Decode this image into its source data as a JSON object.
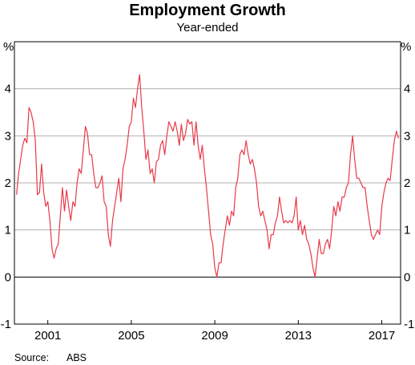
{
  "chart_data": {
    "type": "line",
    "title": "Employment Growth",
    "subtitle": "Year-ended",
    "y_unit_left": "%",
    "y_unit_right": "%",
    "ylim": [
      -1,
      5
    ],
    "yticks": [
      -1,
      0,
      1,
      2,
      3,
      4
    ],
    "xlim": [
      1999.4,
      2017.9
    ],
    "xticks": [
      2001,
      2005,
      2009,
      2013,
      2017
    ],
    "grid": "horizontal",
    "source_label": "Source:",
    "source_value": "ABS",
    "series": [
      {
        "color": "#e8394a",
        "points": [
          [
            1999.5,
            1.75
          ],
          [
            1999.6,
            2.2
          ],
          [
            1999.7,
            2.5
          ],
          [
            1999.8,
            2.8
          ],
          [
            1999.9,
            2.95
          ],
          [
            2000.0,
            2.85
          ],
          [
            2000.1,
            3.6
          ],
          [
            2000.2,
            3.5
          ],
          [
            2000.3,
            3.3
          ],
          [
            2000.4,
            2.9
          ],
          [
            2000.5,
            1.75
          ],
          [
            2000.6,
            1.8
          ],
          [
            2000.7,
            2.4
          ],
          [
            2000.8,
            1.8
          ],
          [
            2000.9,
            1.5
          ],
          [
            2001.0,
            1.6
          ],
          [
            2001.1,
            1.2
          ],
          [
            2001.2,
            0.6
          ],
          [
            2001.3,
            0.4
          ],
          [
            2001.4,
            0.6
          ],
          [
            2001.5,
            0.7
          ],
          [
            2001.6,
            1.3
          ],
          [
            2001.7,
            1.9
          ],
          [
            2001.8,
            1.4
          ],
          [
            2001.9,
            1.85
          ],
          [
            2002.0,
            1.5
          ],
          [
            2002.1,
            1.2
          ],
          [
            2002.2,
            1.6
          ],
          [
            2002.3,
            1.5
          ],
          [
            2002.4,
            2.0
          ],
          [
            2002.5,
            2.3
          ],
          [
            2002.6,
            2.2
          ],
          [
            2002.7,
            2.7
          ],
          [
            2002.8,
            3.2
          ],
          [
            2002.9,
            3.05
          ],
          [
            2003.0,
            2.6
          ],
          [
            2003.1,
            2.6
          ],
          [
            2003.2,
            2.2
          ],
          [
            2003.3,
            1.9
          ],
          [
            2003.4,
            1.9
          ],
          [
            2003.5,
            2.0
          ],
          [
            2003.6,
            2.15
          ],
          [
            2003.7,
            1.6
          ],
          [
            2003.8,
            1.5
          ],
          [
            2003.9,
            0.9
          ],
          [
            2004.0,
            0.65
          ],
          [
            2004.1,
            1.2
          ],
          [
            2004.2,
            1.5
          ],
          [
            2004.3,
            1.8
          ],
          [
            2004.4,
            2.1
          ],
          [
            2004.5,
            1.6
          ],
          [
            2004.6,
            2.3
          ],
          [
            2004.7,
            2.5
          ],
          [
            2004.8,
            2.8
          ],
          [
            2004.9,
            3.2
          ],
          [
            2005.0,
            3.3
          ],
          [
            2005.1,
            3.8
          ],
          [
            2005.2,
            3.6
          ],
          [
            2005.3,
            4.0
          ],
          [
            2005.4,
            4.3
          ],
          [
            2005.5,
            3.6
          ],
          [
            2005.6,
            3.1
          ],
          [
            2005.7,
            2.5
          ],
          [
            2005.8,
            2.7
          ],
          [
            2005.9,
            2.2
          ],
          [
            2006.0,
            2.3
          ],
          [
            2006.1,
            2.0
          ],
          [
            2006.2,
            2.45
          ],
          [
            2006.3,
            2.5
          ],
          [
            2006.4,
            2.8
          ],
          [
            2006.5,
            2.9
          ],
          [
            2006.6,
            2.6
          ],
          [
            2006.7,
            3.0
          ],
          [
            2006.8,
            3.3
          ],
          [
            2006.9,
            3.2
          ],
          [
            2007.0,
            3.1
          ],
          [
            2007.1,
            3.3
          ],
          [
            2007.2,
            3.1
          ],
          [
            2007.3,
            2.8
          ],
          [
            2007.4,
            3.25
          ],
          [
            2007.5,
            2.9
          ],
          [
            2007.6,
            3.05
          ],
          [
            2007.7,
            3.35
          ],
          [
            2007.8,
            3.25
          ],
          [
            2007.9,
            3.3
          ],
          [
            2008.0,
            2.8
          ],
          [
            2008.1,
            3.3
          ],
          [
            2008.2,
            2.8
          ],
          [
            2008.3,
            2.5
          ],
          [
            2008.4,
            2.8
          ],
          [
            2008.5,
            2.3
          ],
          [
            2008.6,
            1.9
          ],
          [
            2008.7,
            1.4
          ],
          [
            2008.8,
            0.9
          ],
          [
            2008.9,
            0.7
          ],
          [
            2009.0,
            0.2
          ],
          [
            2009.1,
            0.0
          ],
          [
            2009.2,
            0.3
          ],
          [
            2009.3,
            0.3
          ],
          [
            2009.4,
            0.7
          ],
          [
            2009.5,
            1.0
          ],
          [
            2009.6,
            1.3
          ],
          [
            2009.7,
            1.1
          ],
          [
            2009.8,
            1.4
          ],
          [
            2009.9,
            1.3
          ],
          [
            2010.0,
            1.9
          ],
          [
            2010.1,
            2.1
          ],
          [
            2010.2,
            2.6
          ],
          [
            2010.3,
            2.7
          ],
          [
            2010.4,
            2.6
          ],
          [
            2010.5,
            2.9
          ],
          [
            2010.6,
            2.6
          ],
          [
            2010.7,
            2.4
          ],
          [
            2010.8,
            2.5
          ],
          [
            2010.9,
            2.3
          ],
          [
            2011.0,
            2.0
          ],
          [
            2011.1,
            1.5
          ],
          [
            2011.2,
            1.3
          ],
          [
            2011.3,
            1.4
          ],
          [
            2011.4,
            1.2
          ],
          [
            2011.5,
            1.0
          ],
          [
            2011.6,
            0.6
          ],
          [
            2011.7,
            0.9
          ],
          [
            2011.8,
            0.9
          ],
          [
            2011.9,
            1.15
          ],
          [
            2012.0,
            1.3
          ],
          [
            2012.1,
            1.7
          ],
          [
            2012.2,
            1.4
          ],
          [
            2012.3,
            1.15
          ],
          [
            2012.4,
            1.2
          ],
          [
            2012.5,
            1.15
          ],
          [
            2012.6,
            1.2
          ],
          [
            2012.7,
            1.15
          ],
          [
            2012.8,
            1.3
          ],
          [
            2012.9,
            1.7
          ],
          [
            2013.0,
            1.0
          ],
          [
            2013.1,
            1.2
          ],
          [
            2013.2,
            0.9
          ],
          [
            2013.3,
            1.1
          ],
          [
            2013.4,
            0.8
          ],
          [
            2013.5,
            0.7
          ],
          [
            2013.6,
            0.5
          ],
          [
            2013.7,
            0.2
          ],
          [
            2013.8,
            0.0
          ],
          [
            2013.9,
            0.4
          ],
          [
            2014.0,
            0.8
          ],
          [
            2014.1,
            0.5
          ],
          [
            2014.2,
            0.5
          ],
          [
            2014.3,
            0.7
          ],
          [
            2014.4,
            0.8
          ],
          [
            2014.5,
            0.6
          ],
          [
            2014.6,
            1.0
          ],
          [
            2014.7,
            1.5
          ],
          [
            2014.8,
            1.3
          ],
          [
            2014.9,
            1.6
          ],
          [
            2015.0,
            1.4
          ],
          [
            2015.1,
            1.7
          ],
          [
            2015.2,
            1.7
          ],
          [
            2015.3,
            1.9
          ],
          [
            2015.4,
            2.0
          ],
          [
            2015.5,
            2.6
          ],
          [
            2015.6,
            3.0
          ],
          [
            2015.7,
            2.5
          ],
          [
            2015.8,
            2.1
          ],
          [
            2015.9,
            2.1
          ],
          [
            2016.0,
            2.0
          ],
          [
            2016.1,
            1.9
          ],
          [
            2016.2,
            1.9
          ],
          [
            2016.3,
            1.5
          ],
          [
            2016.4,
            1.2
          ],
          [
            2016.5,
            0.9
          ],
          [
            2016.6,
            0.8
          ],
          [
            2016.7,
            0.9
          ],
          [
            2016.8,
            1.0
          ],
          [
            2016.9,
            0.9
          ],
          [
            2017.0,
            1.5
          ],
          [
            2017.1,
            1.8
          ],
          [
            2017.2,
            2.0
          ],
          [
            2017.3,
            2.1
          ],
          [
            2017.4,
            2.05
          ],
          [
            2017.5,
            2.5
          ],
          [
            2017.6,
            2.9
          ],
          [
            2017.7,
            3.1
          ],
          [
            2017.8,
            2.95
          ]
        ]
      }
    ]
  }
}
